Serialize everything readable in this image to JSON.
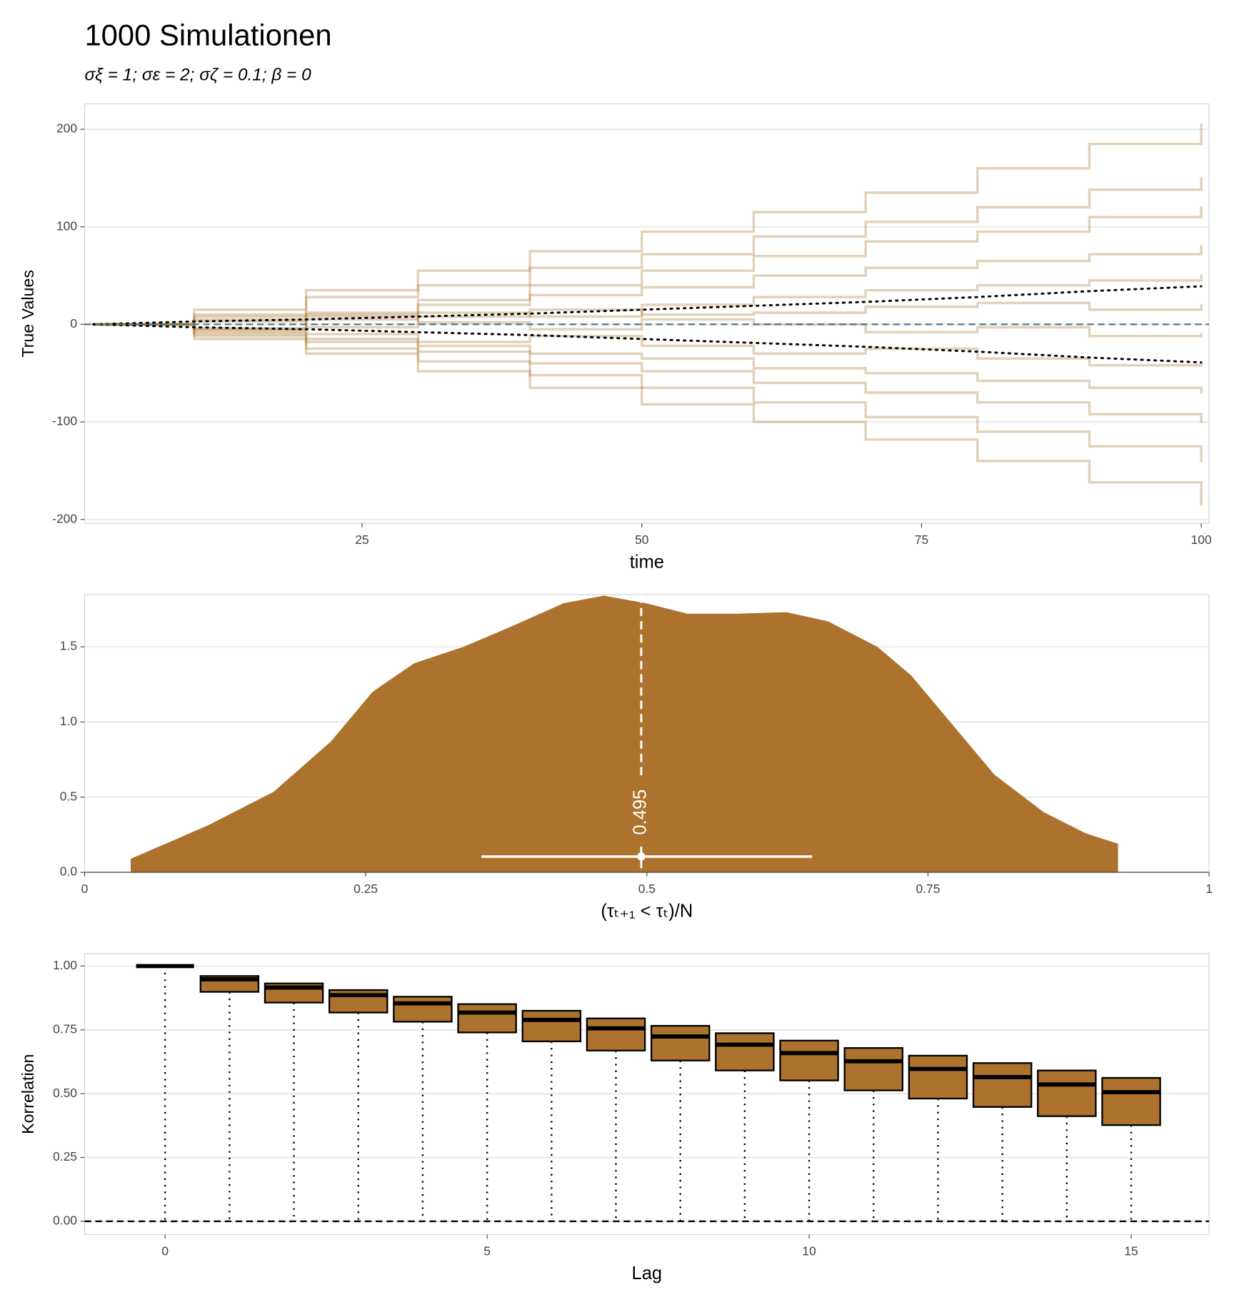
{
  "chart_data": [
    {
      "type": "line",
      "title": "1000 Simulationen",
      "subtitle": "σξ = 1;  σε = 2;  σζ = 0.1;  β = 0",
      "x_label": "time",
      "y_label": "True Values",
      "step": true,
      "x": [
        1,
        10,
        20,
        30,
        40,
        50,
        60,
        70,
        80,
        90,
        100
      ],
      "series": [
        {
          "color": "#b07a3a",
          "values": [
            0,
            15,
            35,
            55,
            75,
            95,
            115,
            135,
            160,
            185,
            205
          ]
        },
        {
          "color": "#b07a3a",
          "values": [
            0,
            10,
            28,
            40,
            58,
            72,
            90,
            105,
            120,
            138,
            150
          ]
        },
        {
          "color": "#b07a3a",
          "values": [
            0,
            -5,
            10,
            25,
            40,
            55,
            70,
            85,
            95,
            110,
            120
          ]
        },
        {
          "color": "#b07a3a",
          "values": [
            0,
            8,
            12,
            20,
            30,
            38,
            50,
            58,
            65,
            72,
            80
          ]
        },
        {
          "color": "#b07a3a",
          "values": [
            0,
            -6,
            5,
            12,
            8,
            20,
            28,
            35,
            40,
            45,
            50
          ]
        },
        {
          "color": "#b07a3a",
          "values": [
            0,
            5,
            -3,
            8,
            15,
            10,
            12,
            18,
            22,
            15,
            20
          ]
        },
        {
          "color": "#b07a3a",
          "values": [
            0,
            3,
            8,
            2,
            -5,
            5,
            0,
            -8,
            -3,
            -12,
            -10
          ]
        },
        {
          "color": "#b07a3a",
          "values": [
            0,
            -8,
            -10,
            -18,
            -12,
            -22,
            -30,
            -25,
            -35,
            -42,
            -40
          ]
        },
        {
          "color": "#b07a3a",
          "values": [
            0,
            -4,
            -15,
            -22,
            -30,
            -35,
            -45,
            -50,
            -58,
            -65,
            -70
          ]
        },
        {
          "color": "#b07a3a",
          "values": [
            0,
            -10,
            -18,
            -28,
            -40,
            -48,
            -60,
            -70,
            -80,
            -92,
            -100
          ]
        },
        {
          "color": "#b07a3a",
          "values": [
            0,
            -12,
            -25,
            -38,
            -52,
            -65,
            -80,
            -95,
            -110,
            -125,
            -140
          ]
        },
        {
          "color": "#b07a3a",
          "values": [
            0,
            -15,
            -30,
            -48,
            -65,
            -82,
            -100,
            -118,
            -140,
            -162,
            -185
          ]
        },
        {
          "color": "#000000",
          "style": "dotted",
          "values": [
            0,
            3,
            5,
            8,
            11,
            15,
            19,
            23,
            28,
            34,
            39
          ]
        },
        {
          "color": "#000000",
          "style": "dotted",
          "values": [
            0,
            -3,
            -5,
            -8,
            -11,
            -15,
            -19,
            -23,
            -28,
            -34,
            -39
          ]
        }
      ],
      "hline": 0,
      "hline_color": "#4a7a8c",
      "xlim": [
        0.2,
        100.7
      ],
      "ylim": [
        -204,
        226
      ],
      "xticks": [
        25,
        50,
        75,
        100
      ],
      "yticks": [
        -200,
        -100,
        0,
        100,
        200
      ],
      "grid": true
    },
    {
      "type": "area",
      "x_label": "(τₜ₊₁ < τₜ)/N",
      "color": "#ad722d",
      "x": [
        0.041,
        0.109,
        0.168,
        0.219,
        0.256,
        0.293,
        0.337,
        0.381,
        0.426,
        0.462,
        0.499,
        0.536,
        0.58,
        0.624,
        0.661,
        0.705,
        0.735,
        0.772,
        0.809,
        0.853,
        0.89,
        0.919
      ],
      "values": [
        0.09,
        0.31,
        0.535,
        0.87,
        1.2,
        1.39,
        1.5,
        1.64,
        1.79,
        1.84,
        1.79,
        1.72,
        1.72,
        1.73,
        1.67,
        1.5,
        1.31,
        0.98,
        0.65,
        0.4,
        0.26,
        0.19
      ],
      "median": 0.495,
      "interval": [
        0.353,
        0.647
      ],
      "interval_y": 0.105,
      "xlim": [
        0,
        1
      ],
      "ylim": [
        0,
        1.847
      ],
      "xticks": [
        0,
        0.25,
        0.5,
        0.75,
        1
      ],
      "yticks": [
        {
          "value": 0,
          "label": "0.0"
        },
        0.5,
        {
          "value": 1,
          "label": "1.0"
        },
        1.5
      ],
      "grid": true
    },
    {
      "type": "box",
      "x_label": "Lag",
      "y_label": "Korrelation",
      "color": "#ad722d",
      "x": [
        0,
        1,
        2,
        3,
        4,
        5,
        6,
        7,
        8,
        9,
        10,
        11,
        12,
        13,
        14,
        15
      ],
      "lower": [
        1,
        0.899,
        0.857,
        0.818,
        0.782,
        0.74,
        0.705,
        0.669,
        0.63,
        0.591,
        0.552,
        0.513,
        0.481,
        0.448,
        0.412,
        0.377
      ],
      "median": [
        1,
        0.948,
        0.916,
        0.886,
        0.854,
        0.818,
        0.789,
        0.756,
        0.724,
        0.692,
        0.659,
        0.627,
        0.597,
        0.565,
        0.536,
        0.506
      ],
      "upper": [
        1,
        0.961,
        0.932,
        0.906,
        0.88,
        0.851,
        0.825,
        0.795,
        0.766,
        0.737,
        0.708,
        0.679,
        0.649,
        0.62,
        0.591,
        0.562
      ],
      "whisker_low": [
        0,
        0,
        0,
        0,
        0,
        0,
        0,
        0,
        0,
        0,
        0,
        0,
        0,
        0,
        0,
        0
      ],
      "hline": 0,
      "xlim": [
        -1.25,
        16.21
      ],
      "ylim": [
        -0.052,
        1.049
      ],
      "xticks": [
        0,
        5,
        10,
        15
      ],
      "yticks": [
        {
          "value": 0,
          "label": "0.00"
        },
        {
          "value": 0.25,
          "label": "0.25"
        },
        {
          "value": 0.5,
          "label": "0.50"
        },
        {
          "value": 0.75,
          "label": "0.75"
        },
        {
          "value": 1,
          "label": "1.00"
        }
      ],
      "grid": true
    }
  ]
}
